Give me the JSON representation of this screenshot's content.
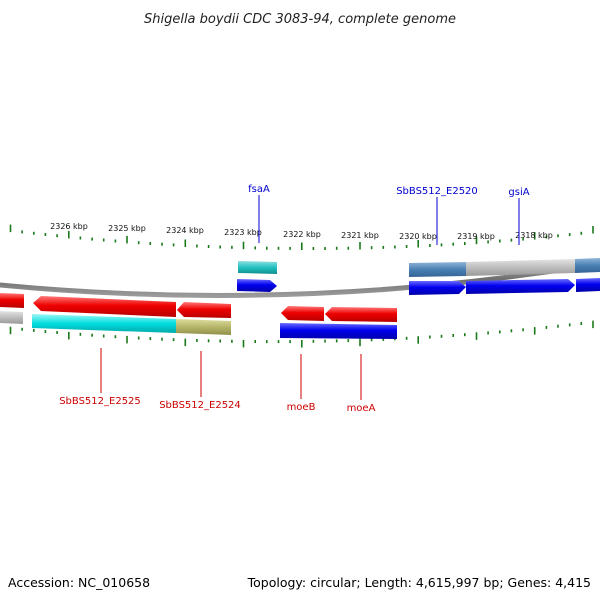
{
  "title": "Shigella boydii CDC 3083-94, complete genome",
  "footer": {
    "accession": "Accession: NC_010658",
    "summary": "Topology: circular; Length: 4,615,997 bp; Genes: 4,415"
  },
  "ticks": [
    "2326 kbp",
    "2325 kbp",
    "2324 kbp",
    "2323 kbp",
    "2322 kbp",
    "2321 kbp",
    "2320 kbp",
    "2319 kbp",
    "2318 kbp"
  ],
  "top_genes": [
    {
      "label": "fsaA",
      "color": "#0000cc"
    },
    {
      "label": "SbBS512_E2520",
      "color": "#0000cc"
    },
    {
      "label": "gsiA",
      "color": "#0000cc"
    }
  ],
  "bottom_genes": [
    {
      "label": "SbBS512_E2525",
      "color": "#cc0000"
    },
    {
      "label": "SbBS512_E2524",
      "color": "#cc0000"
    },
    {
      "label": "moeB",
      "color": "#cc0000"
    },
    {
      "label": "moeA",
      "color": "#cc0000"
    }
  ],
  "colors": {
    "reverse_cds": "#ff0000",
    "forward_cds": "#0000ee",
    "cyan_feature": "#00dddd",
    "olive_feature": "#b5b56a",
    "steel_feature": "#4a80b4",
    "grey_feature": "#bbbbbb",
    "tick_green": "#1a7a1a",
    "backbone": "#777777"
  }
}
